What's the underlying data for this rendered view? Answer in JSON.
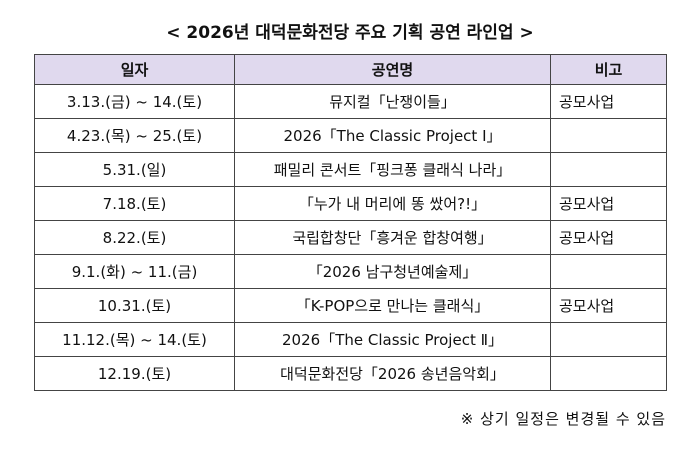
{
  "title": "< 2026년 대덕문화전당 주요 기획 공연 라인업 >",
  "table": {
    "headers": [
      "일자",
      "공연명",
      "비고"
    ],
    "rows": [
      {
        "date": "3.13.(금) ~ 14.(토)",
        "name": "뮤지컬「난쟁이들」",
        "note": "공모사업"
      },
      {
        "date": "4.23.(목) ~ 25.(토)",
        "name": "2026「The Classic Project Ⅰ」",
        "note": ""
      },
      {
        "date": "5.31.(일)",
        "name": "패밀리 콘서트「핑크퐁 클래식 나라」",
        "note": ""
      },
      {
        "date": "7.18.(토)",
        "name": "「누가 내 머리에 똥 쌌어?!」",
        "note": "공모사업"
      },
      {
        "date": "8.22.(토)",
        "name": "국립합창단「흥겨운 합창여행」",
        "note": "공모사업"
      },
      {
        "date": "9.1.(화) ~ 11.(금)",
        "name": "「2026 남구청년예술제」",
        "note": ""
      },
      {
        "date": "10.31.(토)",
        "name": "「K-POP으로 만나는 클래식」",
        "note": "공모사업"
      },
      {
        "date": "11.12.(목) ~ 14.(토)",
        "name": "2026「The Classic Project Ⅱ」",
        "note": ""
      },
      {
        "date": "12.19.(토)",
        "name": "대덕문화전당「2026 송년음악회」",
        "note": ""
      }
    ]
  },
  "footnote": "※ 상기 일정은 변경될 수 있음"
}
